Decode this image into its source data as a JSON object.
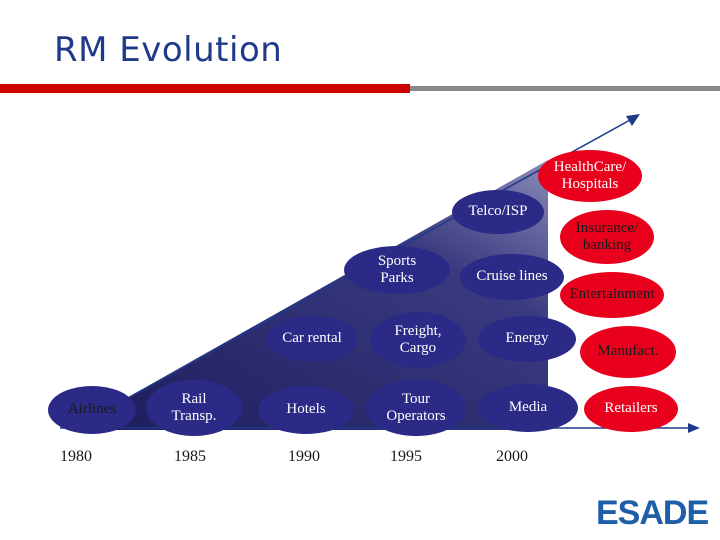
{
  "slide": {
    "title": "RM Evolution",
    "logo": "ESADE"
  },
  "colors": {
    "title": "#1f3a8a",
    "triangle_dark": "#1c1c5c",
    "triangle_light": "#6a6aa8",
    "node_blue": "#2b2a86",
    "node_red": "#e8001c"
  },
  "years": [
    "1980",
    "1985",
    "1990",
    "1995",
    "2000"
  ],
  "nodes": {
    "airlines": [
      "Airlines"
    ],
    "rail": [
      "Rail",
      "Transp."
    ],
    "hotels": [
      "Hotels"
    ],
    "tour": [
      "Tour",
      "Operators"
    ],
    "media": [
      "Media"
    ],
    "retailers": [
      "Retailers"
    ],
    "car_rental": [
      "Car rental"
    ],
    "freight": [
      "Freight,",
      "Cargo"
    ],
    "energy": [
      "Energy"
    ],
    "manufact": [
      "Manufact."
    ],
    "sports": [
      "Sports",
      "Parks"
    ],
    "cruise": [
      "Cruise lines"
    ],
    "entertainment": [
      "Entertainment"
    ],
    "telco": [
      "Telco/ISP"
    ],
    "insurance": [
      "Insurance/",
      "banking"
    ],
    "healthcare": [
      "HealthCare/",
      "Hospitals"
    ]
  }
}
